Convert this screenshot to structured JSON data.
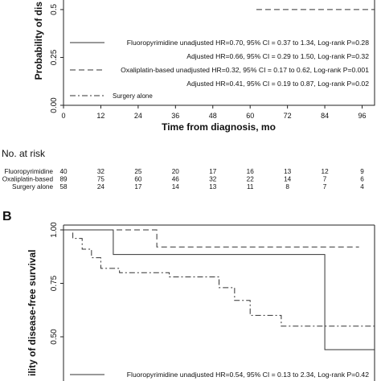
{
  "chart_data": [
    {
      "type": "line",
      "panel_label": "",
      "ylabel": "Probability of dis",
      "xlabel": "Time from diagnosis, mo",
      "y_ticks": [
        "0.00",
        "0.25",
        "0.5"
      ],
      "x_ticks": [
        "0",
        "12",
        "24",
        "36",
        "48",
        "60",
        "72",
        "84",
        "96"
      ],
      "xlim": [
        0,
        100
      ],
      "ylim": [
        0,
        0.55
      ],
      "legend": [
        {
          "label": "Fluoropyrimidine unadjusted HR=0.70, 95% CI = 0.37 to 1.34, Log-rank P=0.28",
          "style": "solid"
        },
        {
          "label": "Adjusted HR=0.66, 95% CI = 0.29 to 1.50, Log-rank P=0.32",
          "style": "none"
        },
        {
          "label": "Oxaliplatin-based unadjusted HR=0.32, 95% CI = 0.17 to 0.62, Log-rank P=0.001",
          "style": "dash"
        },
        {
          "label": "Adjusted HR=0.41, 95% CI = 0.19 to 0.87, Log-rank P=0.02",
          "style": "none"
        },
        {
          "label": "Surgery alone",
          "style": "dashdot"
        }
      ],
      "series": [
        {
          "style": "dash",
          "x": [
            62,
            100
          ],
          "y": [
            0.5,
            0.5
          ]
        }
      ],
      "risk_table": {
        "title": "No. at risk",
        "rows": [
          {
            "label": "Fluoropyrimidine",
            "values": [
              "40",
              "32",
              "25",
              "20",
              "17",
              "16",
              "13",
              "12",
              "9"
            ]
          },
          {
            "label": "Oxaliplatin-based",
            "values": [
              "89",
              "75",
              "60",
              "46",
              "32",
              "22",
              "14",
              "7",
              "6"
            ]
          },
          {
            "label": "Surgery alone",
            "values": [
              "58",
              "24",
              "17",
              "14",
              "13",
              "11",
              "8",
              "7",
              "4"
            ]
          }
        ]
      }
    },
    {
      "type": "line",
      "panel_label": "B",
      "ylabel": "ility of disease-free survival",
      "y_ticks": [
        "0.50",
        "0.75",
        "1.00"
      ],
      "ylim": [
        0.3,
        1.0
      ],
      "xlim": [
        0,
        100
      ],
      "legend": [
        {
          "label": "Fluoropyrimidine unadjusted HR=0.54, 95% CI = 0.13 to 2.34, Log-rank P=0.42",
          "style": "solid"
        }
      ],
      "series": [
        {
          "style": "solid",
          "x": [
            0,
            16,
            16,
            84,
            84,
            100
          ],
          "y": [
            1.0,
            1.0,
            0.885,
            0.885,
            0.44,
            0.44
          ]
        },
        {
          "style": "dash",
          "x": [
            0,
            30,
            30,
            95
          ],
          "y": [
            1.0,
            1.0,
            0.92,
            0.92
          ]
        },
        {
          "style": "dashdot",
          "x": [
            0,
            3,
            3,
            6,
            6,
            9,
            9,
            12,
            12,
            18,
            18,
            34,
            34,
            50,
            50,
            55,
            55,
            60,
            60,
            70,
            70,
            100
          ],
          "y": [
            1.0,
            1.0,
            0.96,
            0.96,
            0.91,
            0.91,
            0.87,
            0.87,
            0.82,
            0.82,
            0.8,
            0.8,
            0.78,
            0.78,
            0.73,
            0.73,
            0.67,
            0.67,
            0.6,
            0.6,
            0.55,
            0.55
          ]
        }
      ]
    }
  ]
}
